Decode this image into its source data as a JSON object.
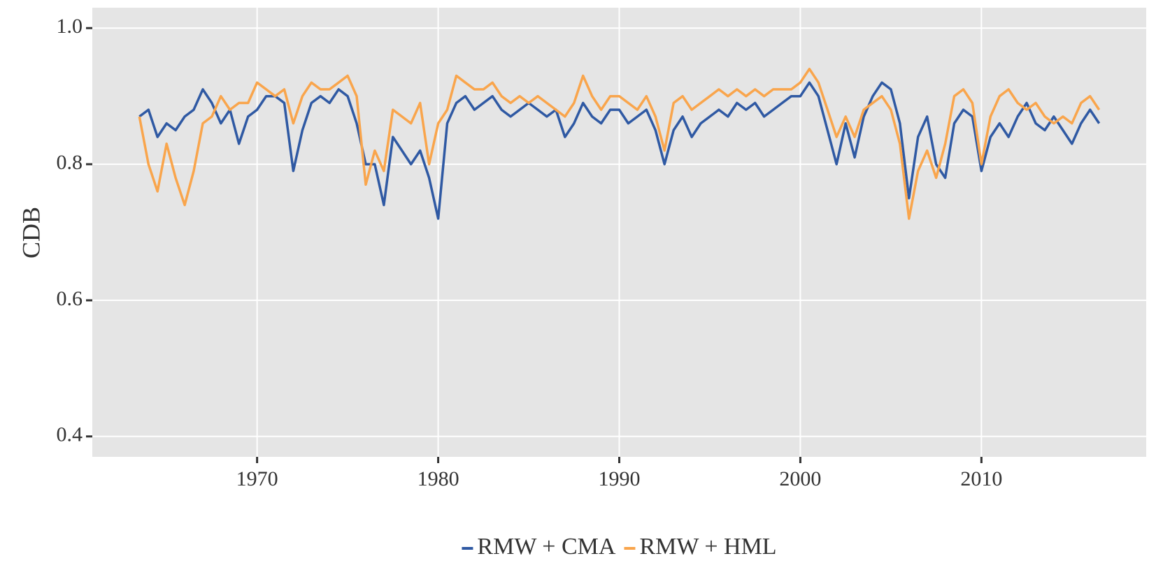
{
  "chart_data": {
    "type": "line",
    "y_label": "CDB",
    "x": [
      1963.5,
      1964,
      1964.5,
      1965,
      1965.5,
      1966,
      1966.5,
      1967,
      1967.5,
      1968,
      1968.5,
      1969,
      1969.5,
      1970,
      1970.5,
      1971,
      1971.5,
      1972,
      1972.5,
      1973,
      1973.5,
      1974,
      1974.5,
      1975,
      1975.5,
      1976,
      1976.5,
      1977,
      1977.5,
      1978,
      1978.5,
      1979,
      1979.5,
      1980,
      1980.5,
      1981,
      1981.5,
      1982,
      1982.5,
      1983,
      1983.5,
      1984,
      1984.5,
      1985,
      1985.5,
      1986,
      1986.5,
      1987,
      1987.5,
      1988,
      1988.5,
      1989,
      1989.5,
      1990,
      1990.5,
      1991,
      1991.5,
      1992,
      1992.5,
      1993,
      1993.5,
      1994,
      1994.5,
      1995,
      1995.5,
      1996,
      1996.5,
      1997,
      1997.5,
      1998,
      1998.5,
      1999,
      1999.5,
      2000,
      2000.5,
      2001,
      2001.5,
      2002,
      2002.5,
      2003,
      2003.5,
      2004,
      2004.5,
      2005,
      2005.5,
      2006,
      2006.5,
      2007,
      2007.5,
      2008,
      2008.5,
      2009,
      2009.5,
      2010,
      2010.5,
      2011,
      2011.5,
      2012,
      2012.5,
      2013,
      2013.5,
      2014,
      2014.5,
      2015,
      2015.5,
      2016,
      2016.5
    ],
    "series": [
      {
        "name": "RMW + CMA",
        "color": "#2f59a3",
        "values": [
          0.87,
          0.88,
          0.84,
          0.86,
          0.85,
          0.87,
          0.88,
          0.91,
          0.89,
          0.86,
          0.88,
          0.83,
          0.87,
          0.88,
          0.9,
          0.9,
          0.89,
          0.79,
          0.85,
          0.89,
          0.9,
          0.89,
          0.91,
          0.9,
          0.86,
          0.8,
          0.8,
          0.74,
          0.84,
          0.82,
          0.8,
          0.82,
          0.78,
          0.72,
          0.86,
          0.89,
          0.9,
          0.88,
          0.89,
          0.9,
          0.88,
          0.87,
          0.88,
          0.89,
          0.88,
          0.87,
          0.88,
          0.84,
          0.86,
          0.89,
          0.87,
          0.86,
          0.88,
          0.88,
          0.86,
          0.87,
          0.88,
          0.85,
          0.8,
          0.85,
          0.87,
          0.84,
          0.86,
          0.87,
          0.88,
          0.87,
          0.89,
          0.88,
          0.89,
          0.87,
          0.88,
          0.89,
          0.9,
          0.9,
          0.92,
          0.9,
          0.85,
          0.8,
          0.86,
          0.81,
          0.87,
          0.9,
          0.92,
          0.91,
          0.86,
          0.75,
          0.84,
          0.87,
          0.8,
          0.78,
          0.86,
          0.88,
          0.87,
          0.79,
          0.84,
          0.86,
          0.84,
          0.87,
          0.89,
          0.86,
          0.85,
          0.87,
          0.85,
          0.83,
          0.86,
          0.88,
          0.86
        ]
      },
      {
        "name": "RMW + HML",
        "color": "#f9a54c",
        "values": [
          0.87,
          0.8,
          0.76,
          0.83,
          0.78,
          0.74,
          0.79,
          0.86,
          0.87,
          0.9,
          0.88,
          0.89,
          0.89,
          0.92,
          0.91,
          0.9,
          0.91,
          0.86,
          0.9,
          0.92,
          0.91,
          0.91,
          0.92,
          0.93,
          0.9,
          0.77,
          0.82,
          0.79,
          0.88,
          0.87,
          0.86,
          0.89,
          0.8,
          0.86,
          0.88,
          0.93,
          0.92,
          0.91,
          0.91,
          0.92,
          0.9,
          0.89,
          0.9,
          0.89,
          0.9,
          0.89,
          0.88,
          0.87,
          0.89,
          0.93,
          0.9,
          0.88,
          0.9,
          0.9,
          0.89,
          0.88,
          0.9,
          0.87,
          0.82,
          0.89,
          0.9,
          0.88,
          0.89,
          0.9,
          0.91,
          0.9,
          0.91,
          0.9,
          0.91,
          0.9,
          0.91,
          0.91,
          0.91,
          0.92,
          0.94,
          0.92,
          0.88,
          0.84,
          0.87,
          0.84,
          0.88,
          0.89,
          0.9,
          0.88,
          0.83,
          0.72,
          0.79,
          0.82,
          0.78,
          0.83,
          0.9,
          0.91,
          0.89,
          0.8,
          0.87,
          0.9,
          0.91,
          0.89,
          0.88,
          0.89,
          0.87,
          0.86,
          0.87,
          0.86,
          0.89,
          0.9,
          0.88
        ]
      }
    ],
    "xlim": [
      1960.9,
      2019.1
    ],
    "xticks": [
      1970,
      1980,
      1990,
      2000,
      2010
    ],
    "ylim": [
      0.37,
      1.03
    ],
    "yticks": [
      0.4,
      0.6,
      0.8,
      {
        "value": 1,
        "label": "1.0"
      }
    ],
    "grid": true,
    "legend": "bottom"
  }
}
